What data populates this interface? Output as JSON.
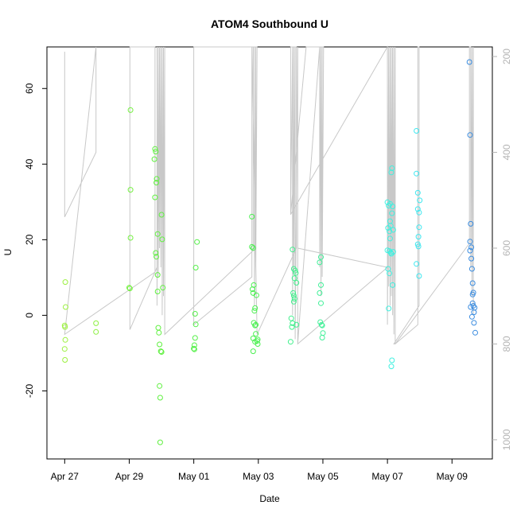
{
  "chart_data": {
    "type": "scatter",
    "title": "ATOM4 Southbound U",
    "xlabel": "Date",
    "ylabel": "U",
    "x_ticks": [
      "Apr 27",
      "Apr 29",
      "May 01",
      "May 03",
      "May 05",
      "May 07",
      "May 09"
    ],
    "x_tick_days": [
      0,
      2,
      4,
      6,
      8,
      10,
      12
    ],
    "xlim": [
      -0.55,
      13.25
    ],
    "ylim": [
      -38,
      71
    ],
    "y_ticks": [
      -20,
      0,
      20,
      40,
      60
    ],
    "right_axis": {
      "ticks": [
        200,
        400,
        600,
        800,
        1000
      ],
      "lim": [
        1040,
        180
      ],
      "reversed": true
    },
    "grid": false,
    "point_color_scale": "green to blue by date",
    "points": [
      {
        "x": 0.02,
        "y": 8.8,
        "c": "#9cf040"
      },
      {
        "x": 0.03,
        "y": 2.2,
        "c": "#9cf040"
      },
      {
        "x": 0.0,
        "y": -2.7,
        "c": "#9cf040"
      },
      {
        "x": 0.01,
        "y": -3.1,
        "c": "#9cf040"
      },
      {
        "x": 0.02,
        "y": -6.5,
        "c": "#9cf040"
      },
      {
        "x": 0.0,
        "y": -8.9,
        "c": "#9cf040"
      },
      {
        "x": 0.01,
        "y": -11.8,
        "c": "#9cf040"
      },
      {
        "x": 0.97,
        "y": -2.1,
        "c": "#8cf040"
      },
      {
        "x": 0.97,
        "y": -4.4,
        "c": "#8cf040"
      },
      {
        "x": 2.04,
        "y": 54.3,
        "c": "#74f040"
      },
      {
        "x": 2.04,
        "y": 33.2,
        "c": "#74f040"
      },
      {
        "x": 2.04,
        "y": 20.5,
        "c": "#74f040"
      },
      {
        "x": 2.0,
        "y": 7.3,
        "c": "#74f040"
      },
      {
        "x": 2.02,
        "y": 7.1,
        "c": "#74f040"
      },
      {
        "x": 2.8,
        "y": 44.0,
        "c": "#60f040"
      },
      {
        "x": 2.82,
        "y": 43.3,
        "c": "#60f040"
      },
      {
        "x": 2.78,
        "y": 41.3,
        "c": "#60f040"
      },
      {
        "x": 2.85,
        "y": 36.1,
        "c": "#60f040"
      },
      {
        "x": 2.84,
        "y": 35.1,
        "c": "#60f040"
      },
      {
        "x": 2.8,
        "y": 31.2,
        "c": "#60f040"
      },
      {
        "x": 3.0,
        "y": 26.6,
        "c": "#60f040"
      },
      {
        "x": 2.88,
        "y": 21.5,
        "c": "#60f040"
      },
      {
        "x": 3.02,
        "y": 20.1,
        "c": "#60f040"
      },
      {
        "x": 2.82,
        "y": 16.5,
        "c": "#60f040"
      },
      {
        "x": 2.84,
        "y": 15.5,
        "c": "#60f040"
      },
      {
        "x": 2.88,
        "y": 10.7,
        "c": "#60f040"
      },
      {
        "x": 3.04,
        "y": 7.3,
        "c": "#60f040"
      },
      {
        "x": 2.88,
        "y": 6.3,
        "c": "#60f040"
      },
      {
        "x": 2.9,
        "y": -3.3,
        "c": "#60f040"
      },
      {
        "x": 2.92,
        "y": -4.6,
        "c": "#60f040"
      },
      {
        "x": 2.94,
        "y": -7.7,
        "c": "#60f040"
      },
      {
        "x": 2.98,
        "y": -9.5,
        "c": "#60f040"
      },
      {
        "x": 3.0,
        "y": -9.7,
        "c": "#60f040"
      },
      {
        "x": 2.94,
        "y": -18.7,
        "c": "#60f040"
      },
      {
        "x": 2.96,
        "y": -21.8,
        "c": "#60f040"
      },
      {
        "x": 2.96,
        "y": -33.6,
        "c": "#60f040"
      },
      {
        "x": 4.1,
        "y": 19.4,
        "c": "#54f048"
      },
      {
        "x": 4.06,
        "y": 12.6,
        "c": "#54f048"
      },
      {
        "x": 4.04,
        "y": 0.4,
        "c": "#54f048"
      },
      {
        "x": 4.06,
        "y": -2.4,
        "c": "#54f048"
      },
      {
        "x": 4.04,
        "y": -6.0,
        "c": "#54f048"
      },
      {
        "x": 4.02,
        "y": -7.9,
        "c": "#54f048"
      },
      {
        "x": 4.0,
        "y": -8.8,
        "c": "#54f048"
      },
      {
        "x": 4.02,
        "y": -9.0,
        "c": "#54f048"
      },
      {
        "x": 5.8,
        "y": 26.1,
        "c": "#4af050"
      },
      {
        "x": 5.8,
        "y": 18.1,
        "c": "#4af050"
      },
      {
        "x": 5.84,
        "y": 17.8,
        "c": "#4af050"
      },
      {
        "x": 5.86,
        "y": 8.0,
        "c": "#4af050"
      },
      {
        "x": 5.82,
        "y": 6.9,
        "c": "#4af050"
      },
      {
        "x": 5.84,
        "y": 5.9,
        "c": "#4af050"
      },
      {
        "x": 5.94,
        "y": 5.3,
        "c": "#4af050"
      },
      {
        "x": 5.9,
        "y": 1.9,
        "c": "#4af050"
      },
      {
        "x": 5.88,
        "y": 1.2,
        "c": "#4af050"
      },
      {
        "x": 5.86,
        "y": -2.0,
        "c": "#4af050"
      },
      {
        "x": 5.92,
        "y": -2.5,
        "c": "#4af050"
      },
      {
        "x": 5.9,
        "y": -2.7,
        "c": "#4af050"
      },
      {
        "x": 5.92,
        "y": -4.9,
        "c": "#4af050"
      },
      {
        "x": 5.84,
        "y": -6.1,
        "c": "#4af050"
      },
      {
        "x": 5.98,
        "y": -6.4,
        "c": "#4af050"
      },
      {
        "x": 5.96,
        "y": -6.8,
        "c": "#4af050"
      },
      {
        "x": 5.9,
        "y": -7.0,
        "c": "#4af050"
      },
      {
        "x": 5.98,
        "y": -7.6,
        "c": "#4af050"
      },
      {
        "x": 5.84,
        "y": -9.5,
        "c": "#4af050"
      },
      {
        "x": 7.06,
        "y": 17.4,
        "c": "#40f08c"
      },
      {
        "x": 7.1,
        "y": 12.3,
        "c": "#40f08c"
      },
      {
        "x": 7.14,
        "y": 11.8,
        "c": "#40f08c"
      },
      {
        "x": 7.16,
        "y": 11.2,
        "c": "#40f08c"
      },
      {
        "x": 7.12,
        "y": 9.8,
        "c": "#40f08c"
      },
      {
        "x": 7.18,
        "y": 8.6,
        "c": "#40f08c"
      },
      {
        "x": 7.08,
        "y": 5.9,
        "c": "#40f08c"
      },
      {
        "x": 7.1,
        "y": 5.2,
        "c": "#40f08c"
      },
      {
        "x": 7.12,
        "y": 4.4,
        "c": "#40f08c"
      },
      {
        "x": 7.1,
        "y": 3.6,
        "c": "#40f08c"
      },
      {
        "x": 7.02,
        "y": -0.8,
        "c": "#40f08c"
      },
      {
        "x": 7.06,
        "y": -2.1,
        "c": "#40f08c"
      },
      {
        "x": 7.18,
        "y": -2.5,
        "c": "#40f08c"
      },
      {
        "x": 7.04,
        "y": -3.1,
        "c": "#40f08c"
      },
      {
        "x": 7.0,
        "y": -7.0,
        "c": "#40f08c"
      },
      {
        "x": 7.94,
        "y": 15.4,
        "c": "#40f098"
      },
      {
        "x": 7.9,
        "y": 14.0,
        "c": "#40f098"
      },
      {
        "x": 7.94,
        "y": 8.0,
        "c": "#40f098"
      },
      {
        "x": 7.9,
        "y": 5.9,
        "c": "#40f098"
      },
      {
        "x": 7.94,
        "y": 3.2,
        "c": "#40f098"
      },
      {
        "x": 7.92,
        "y": -1.8,
        "c": "#40f098"
      },
      {
        "x": 7.96,
        "y": -2.5,
        "c": "#40f098"
      },
      {
        "x": 7.98,
        "y": -2.7,
        "c": "#40f098"
      },
      {
        "x": 8.0,
        "y": -4.7,
        "c": "#40f098"
      },
      {
        "x": 7.98,
        "y": -5.9,
        "c": "#40f098"
      },
      {
        "x": 10.08,
        "y": 29.5,
        "c": "#40f0e0"
      },
      {
        "x": 10.14,
        "y": 38.9,
        "c": "#40f0e0"
      },
      {
        "x": 10.12,
        "y": 37.8,
        "c": "#40f0e0"
      },
      {
        "x": 10.0,
        "y": 29.9,
        "c": "#40f0e0"
      },
      {
        "x": 10.04,
        "y": 29.0,
        "c": "#40f0e0"
      },
      {
        "x": 10.16,
        "y": 28.8,
        "c": "#40f0e0"
      },
      {
        "x": 10.14,
        "y": 27.0,
        "c": "#40f0e0"
      },
      {
        "x": 10.08,
        "y": 24.9,
        "c": "#40f0e0"
      },
      {
        "x": 10.1,
        "y": 23.7,
        "c": "#40f0e0"
      },
      {
        "x": 10.02,
        "y": 23.1,
        "c": "#40f0e0"
      },
      {
        "x": 10.18,
        "y": 22.6,
        "c": "#40f0e0"
      },
      {
        "x": 10.06,
        "y": 22.2,
        "c": "#40f0e0"
      },
      {
        "x": 10.08,
        "y": 20.3,
        "c": "#40f0e0"
      },
      {
        "x": 10.0,
        "y": 17.2,
        "c": "#40f0e0"
      },
      {
        "x": 10.06,
        "y": 17.0,
        "c": "#40f0e0"
      },
      {
        "x": 10.1,
        "y": 16.6,
        "c": "#40f0e0"
      },
      {
        "x": 10.12,
        "y": 16.3,
        "c": "#40f0e0"
      },
      {
        "x": 10.18,
        "y": 16.8,
        "c": "#40f0e0"
      },
      {
        "x": 10.02,
        "y": 12.3,
        "c": "#40f0e0"
      },
      {
        "x": 10.06,
        "y": 11.1,
        "c": "#40f0e0"
      },
      {
        "x": 10.16,
        "y": 8.0,
        "c": "#40f0e0"
      },
      {
        "x": 10.04,
        "y": 1.8,
        "c": "#40f0e0"
      },
      {
        "x": 10.14,
        "y": -11.9,
        "c": "#40f0e0"
      },
      {
        "x": 10.12,
        "y": -13.5,
        "c": "#40f0e0"
      },
      {
        "x": 10.9,
        "y": 48.8,
        "c": "#40e8f0"
      },
      {
        "x": 10.9,
        "y": 37.5,
        "c": "#40e8f0"
      },
      {
        "x": 10.94,
        "y": 32.4,
        "c": "#40e8f0"
      },
      {
        "x": 11.0,
        "y": 30.4,
        "c": "#40e8f0"
      },
      {
        "x": 10.94,
        "y": 28.1,
        "c": "#40e8f0"
      },
      {
        "x": 10.98,
        "y": 27.2,
        "c": "#40e8f0"
      },
      {
        "x": 10.98,
        "y": 23.3,
        "c": "#40e8f0"
      },
      {
        "x": 10.96,
        "y": 20.8,
        "c": "#40e8f0"
      },
      {
        "x": 10.94,
        "y": 18.8,
        "c": "#40e8f0"
      },
      {
        "x": 10.96,
        "y": 18.2,
        "c": "#40e8f0"
      },
      {
        "x": 10.9,
        "y": 13.6,
        "c": "#40e8f0"
      },
      {
        "x": 10.98,
        "y": 10.4,
        "c": "#40e8f0"
      },
      {
        "x": 12.54,
        "y": 67.0,
        "c": "#3a8ce0"
      },
      {
        "x": 12.56,
        "y": 47.7,
        "c": "#3a8ce0"
      },
      {
        "x": 12.58,
        "y": 24.2,
        "c": "#3a8ce0"
      },
      {
        "x": 12.56,
        "y": 19.5,
        "c": "#3a8ce0"
      },
      {
        "x": 12.6,
        "y": 18.0,
        "c": "#3a8ce0"
      },
      {
        "x": 12.56,
        "y": 17.1,
        "c": "#3a8ce0"
      },
      {
        "x": 12.6,
        "y": 15.0,
        "c": "#3a8ce0"
      },
      {
        "x": 12.62,
        "y": 12.3,
        "c": "#3a8ce0"
      },
      {
        "x": 12.64,
        "y": 8.5,
        "c": "#3a8ce0"
      },
      {
        "x": 12.66,
        "y": 6.0,
        "c": "#3a8ce0"
      },
      {
        "x": 12.64,
        "y": 5.5,
        "c": "#3a8ce0"
      },
      {
        "x": 12.64,
        "y": 3.2,
        "c": "#3a8ce0"
      },
      {
        "x": 12.66,
        "y": 2.5,
        "c": "#3a8ce0"
      },
      {
        "x": 12.58,
        "y": 2.2,
        "c": "#3a8ce0"
      },
      {
        "x": 12.7,
        "y": 2.0,
        "c": "#3a8ce0"
      },
      {
        "x": 12.68,
        "y": 0.8,
        "c": "#3a8ce0"
      },
      {
        "x": 12.62,
        "y": -0.4,
        "c": "#3a8ce0"
      },
      {
        "x": 12.68,
        "y": -2.0,
        "c": "#3a8ce0"
      },
      {
        "x": 12.72,
        "y": -4.6,
        "c": "#3a8ce0"
      }
    ],
    "track_series": [
      {
        "x": 0.0,
        "y": 190
      },
      {
        "x": 0.0,
        "y": 535
      },
      {
        "x": 0.97,
        "y": 400
      },
      {
        "x": 0.97,
        "y": 180
      },
      {
        "x": 0.97,
        "y": 180
      },
      {
        "x": 0.0,
        "y": 780
      },
      {
        "x": 2.8,
        "y": 650
      },
      {
        "x": 2.8,
        "y": 180
      },
      {
        "x": 2.02,
        "y": 180
      },
      {
        "x": 2.02,
        "y": 770
      },
      {
        "x": 2.86,
        "y": 640
      },
      {
        "x": 2.86,
        "y": 180
      },
      {
        "x": 2.86,
        "y": 720
      },
      {
        "x": 2.9,
        "y": 180
      },
      {
        "x": 2.9,
        "y": 660
      },
      {
        "x": 2.94,
        "y": 180
      },
      {
        "x": 2.94,
        "y": 600
      },
      {
        "x": 2.98,
        "y": 180
      },
      {
        "x": 2.98,
        "y": 640
      },
      {
        "x": 3.02,
        "y": 180
      },
      {
        "x": 3.02,
        "y": 740
      },
      {
        "x": 3.06,
        "y": 180
      },
      {
        "x": 3.06,
        "y": 700
      },
      {
        "x": 3.1,
        "y": 180
      },
      {
        "x": 3.1,
        "y": 780
      },
      {
        "x": 5.84,
        "y": 605
      },
      {
        "x": 5.84,
        "y": 180
      },
      {
        "x": 5.88,
        "y": 180
      },
      {
        "x": 5.88,
        "y": 720
      },
      {
        "x": 5.92,
        "y": 180
      },
      {
        "x": 5.92,
        "y": 640
      },
      {
        "x": 5.96,
        "y": 180
      },
      {
        "x": 4.0,
        "y": 180
      },
      {
        "x": 4.0,
        "y": 760
      },
      {
        "x": 5.8,
        "y": 660
      },
      {
        "x": 5.8,
        "y": 180
      },
      {
        "x": 5.96,
        "y": 780
      },
      {
        "x": 7.18,
        "y": 600
      },
      {
        "x": 7.18,
        "y": 180
      },
      {
        "x": 7.0,
        "y": 180
      },
      {
        "x": 7.0,
        "y": 530
      },
      {
        "x": 7.06,
        "y": 180
      },
      {
        "x": 7.06,
        "y": 740
      },
      {
        "x": 7.1,
        "y": 180
      },
      {
        "x": 7.1,
        "y": 650
      },
      {
        "x": 7.14,
        "y": 180
      },
      {
        "x": 7.14,
        "y": 790
      },
      {
        "x": 7.22,
        "y": 180
      },
      {
        "x": 7.22,
        "y": 800
      },
      {
        "x": 7.22,
        "y": 600
      },
      {
        "x": 10.0,
        "y": 640
      },
      {
        "x": 7.22,
        "y": 800
      },
      {
        "x": 7.9,
        "y": 180
      },
      {
        "x": 7.9,
        "y": 640
      },
      {
        "x": 7.94,
        "y": 180
      },
      {
        "x": 7.94,
        "y": 700
      },
      {
        "x": 7.98,
        "y": 180
      },
      {
        "x": 7.98,
        "y": 660
      },
      {
        "x": 8.02,
        "y": 180
      },
      {
        "x": 7.48,
        "y": 180
      },
      {
        "x": 7.0,
        "y": 530
      },
      {
        "x": 10.0,
        "y": 180
      },
      {
        "x": 10.0,
        "y": 760
      },
      {
        "x": 10.04,
        "y": 180
      },
      {
        "x": 10.04,
        "y": 680
      },
      {
        "x": 10.08,
        "y": 180
      },
      {
        "x": 10.08,
        "y": 720
      },
      {
        "x": 10.12,
        "y": 180
      },
      {
        "x": 10.12,
        "y": 700
      },
      {
        "x": 10.16,
        "y": 180
      },
      {
        "x": 10.16,
        "y": 740
      },
      {
        "x": 10.2,
        "y": 180
      },
      {
        "x": 10.2,
        "y": 780
      },
      {
        "x": 10.24,
        "y": 180
      },
      {
        "x": 10.24,
        "y": 800
      },
      {
        "x": 10.2,
        "y": 800
      },
      {
        "x": 10.98,
        "y": 720
      },
      {
        "x": 10.98,
        "y": 180
      },
      {
        "x": 10.94,
        "y": 180
      },
      {
        "x": 10.94,
        "y": 760
      },
      {
        "x": 10.24,
        "y": 800
      },
      {
        "x": 12.54,
        "y": 590
      },
      {
        "x": 12.54,
        "y": 180
      },
      {
        "x": 12.58,
        "y": 180
      },
      {
        "x": 12.58,
        "y": 640
      },
      {
        "x": 12.62,
        "y": 180
      },
      {
        "x": 12.62,
        "y": 700
      },
      {
        "x": 12.66,
        "y": 180
      },
      {
        "x": 12.66,
        "y": 740
      }
    ],
    "track_color": "#c8c8c8"
  }
}
